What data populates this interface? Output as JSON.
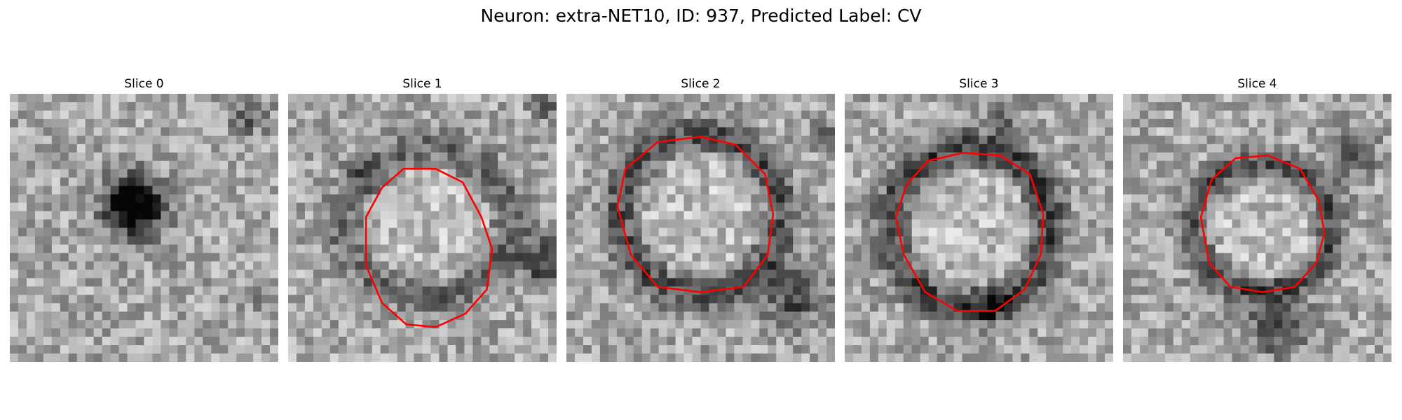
{
  "figure": {
    "title": "Neuron: extra-NET10, ID: 937, Predicted Label: CV"
  },
  "panels": [
    {
      "title": "Slice 0",
      "has_contour": false,
      "dark_spots": [
        [
          0.46,
          0.42,
          0.09,
          0.85
        ],
        [
          0.89,
          0.08,
          0.07,
          0.6
        ],
        [
          0.95,
          0.75,
          0.05,
          0.35
        ]
      ]
    },
    {
      "title": "Slice 1",
      "has_contour": true,
      "dark_spots": [
        [
          0.95,
          0.62,
          0.09,
          0.9
        ],
        [
          0.96,
          0.05,
          0.05,
          0.6
        ],
        [
          0.3,
          0.3,
          0.07,
          0.35
        ]
      ]
    },
    {
      "title": "Slice 2",
      "has_contour": true,
      "dark_spots": [
        [
          0.85,
          0.75,
          0.11,
          0.8
        ],
        [
          0.97,
          0.15,
          0.05,
          0.5
        ]
      ]
    },
    {
      "title": "Slice 3",
      "has_contour": true,
      "dark_spots": [
        [
          0.55,
          0.78,
          0.06,
          0.7
        ],
        [
          0.6,
          0.08,
          0.07,
          0.45
        ]
      ]
    },
    {
      "title": "Slice 4",
      "has_contour": true,
      "dark_spots": [
        [
          0.58,
          0.86,
          0.1,
          0.95
        ],
        [
          0.85,
          0.22,
          0.08,
          0.9
        ]
      ]
    }
  ],
  "colors": {
    "contour": "#ff0000",
    "background": "#ffffff"
  }
}
